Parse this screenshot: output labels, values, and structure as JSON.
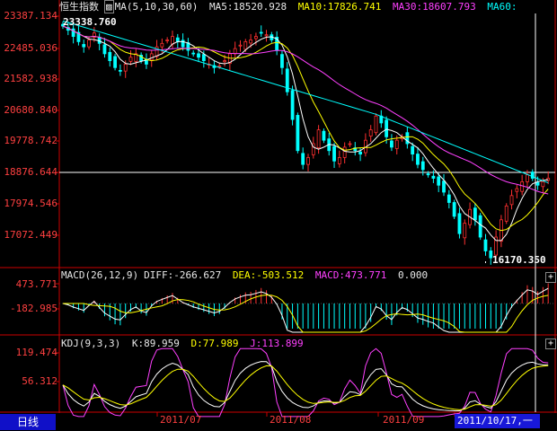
{
  "main": {
    "title": "恒生指数",
    "ma_label": "MA(5,10,30,60)",
    "ma5": "MA5:18520.928",
    "ma10": "MA10:17826.741",
    "ma30": "MA30:18607.793",
    "ma60": "MA60:",
    "high_label": "23338.760",
    "low_label": "16170.350",
    "y_ticks": [
      "23387.134",
      "22485.036",
      "21582.938",
      "20680.840",
      "19778.742",
      "18876.644",
      "17974.546",
      "17072.449"
    ]
  },
  "macd": {
    "label": "MACD(26,12,9)",
    "diff": "DIFF:-266.627",
    "dea": "DEA:-503.512",
    "macd": "MACD:473.771",
    "zero": "0.000",
    "y_ticks": [
      "473.771",
      "-182.985"
    ]
  },
  "kdj": {
    "label": "KDJ(9,3,3)",
    "k": "K:89.959",
    "d": "D:77.989",
    "j": "J:113.899",
    "y_ticks": [
      "119.474",
      "56.312"
    ]
  },
  "footer": {
    "tab_label": "日线",
    "dates": [
      "2011/07",
      "2011/08",
      "2011/09"
    ],
    "cursor_date": "2011/10/17,一"
  },
  "colors": {
    "up": "#ff3030",
    "down": "#00ffff",
    "ma5": "#ffffff",
    "ma10": "#ffff00",
    "ma30": "#ff40ff",
    "ma60": "#00ffff",
    "axis": "#cc0000"
  },
  "chart_data": {
    "type": "candlestick",
    "ylim": [
      16170.35,
      23387.134
    ],
    "closes": [
      23100,
      22980,
      22800,
      22650,
      22500,
      22700,
      22900,
      22600,
      22300,
      22100,
      21900,
      21800,
      22000,
      22200,
      22300,
      22100,
      22000,
      22300,
      22500,
      22600,
      22700,
      22800,
      22650,
      22500,
      22400,
      22300,
      22200,
      22100,
      22000,
      21900,
      21950,
      22100,
      22300,
      22450,
      22550,
      22650,
      22700,
      22800,
      22900,
      22850,
      22700,
      22400,
      21900,
      21200,
      20400,
      19500,
      19100,
      19300,
      19700,
      20100,
      19800,
      19500,
      19200,
      19300,
      19600,
      19700,
      19500,
      19400,
      19800,
      20100,
      20500,
      20300,
      19900,
      19600,
      19800,
      19900,
      19700,
      19400,
      19100,
      18950,
      18800,
      18700,
      18500,
      18300,
      18000,
      17600,
      17100,
      17400,
      17800,
      17500,
      17000,
      16600,
      16400,
      17000,
      17500,
      17900,
      18200,
      18400,
      18600,
      18800,
      18700,
      18500,
      18600,
      18700
    ],
    "macd_hist_note": "histogram bars around zero line",
    "kdj_ylim": [
      0,
      119.474
    ]
  }
}
